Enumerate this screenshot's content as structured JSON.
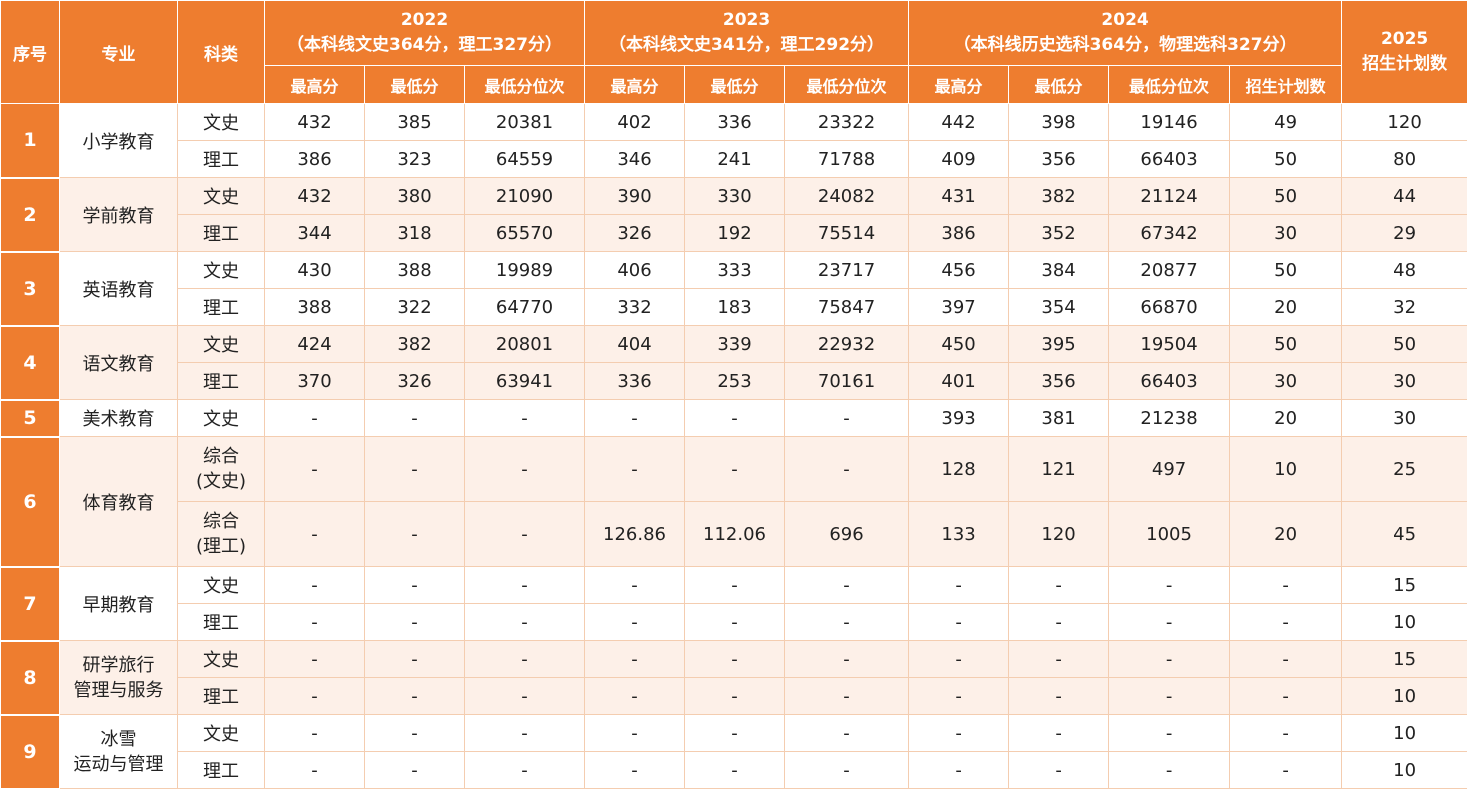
{
  "header": {
    "index": "序号",
    "major": "专业",
    "category": "科类",
    "years": [
      {
        "year": "2022",
        "note": "（本科线文史364分，理工327分）",
        "cols": [
          "最高分",
          "最低分",
          "最低分位次"
        ]
      },
      {
        "year": "2023",
        "note": "（本科线文史341分，理工292分）",
        "cols": [
          "最高分",
          "最低分",
          "最低分位次"
        ]
      },
      {
        "year": "2024",
        "note": "（本科线历史选科364分，物理选科327分）",
        "cols": [
          "最高分",
          "最低分",
          "最低分位次",
          "招生计划数"
        ]
      }
    ],
    "plan_year": "2025",
    "plan_label": "招生计划数"
  },
  "rows": [
    {
      "idx": "1",
      "major": "小学教育",
      "subs": [
        {
          "cat": "文史",
          "v": [
            "432",
            "385",
            "20381",
            "402",
            "336",
            "23322",
            "442",
            "398",
            "19146",
            "49",
            "120"
          ]
        },
        {
          "cat": "理工",
          "v": [
            "386",
            "323",
            "64559",
            "346",
            "241",
            "71788",
            "409",
            "356",
            "66403",
            "50",
            "80"
          ]
        }
      ]
    },
    {
      "idx": "2",
      "major": "学前教育",
      "subs": [
        {
          "cat": "文史",
          "v": [
            "432",
            "380",
            "21090",
            "390",
            "330",
            "24082",
            "431",
            "382",
            "21124",
            "50",
            "44"
          ]
        },
        {
          "cat": "理工",
          "v": [
            "344",
            "318",
            "65570",
            "326",
            "192",
            "75514",
            "386",
            "352",
            "67342",
            "30",
            "29"
          ]
        }
      ]
    },
    {
      "idx": "3",
      "major": "英语教育",
      "subs": [
        {
          "cat": "文史",
          "v": [
            "430",
            "388",
            "19989",
            "406",
            "333",
            "23717",
            "456",
            "384",
            "20877",
            "50",
            "48"
          ]
        },
        {
          "cat": "理工",
          "v": [
            "388",
            "322",
            "64770",
            "332",
            "183",
            "75847",
            "397",
            "354",
            "66870",
            "20",
            "32"
          ]
        }
      ]
    },
    {
      "idx": "4",
      "major": "语文教育",
      "subs": [
        {
          "cat": "文史",
          "v": [
            "424",
            "382",
            "20801",
            "404",
            "339",
            "22932",
            "450",
            "395",
            "19504",
            "50",
            "50"
          ]
        },
        {
          "cat": "理工",
          "v": [
            "370",
            "326",
            "63941",
            "336",
            "253",
            "70161",
            "401",
            "356",
            "66403",
            "30",
            "30"
          ]
        }
      ]
    },
    {
      "idx": "5",
      "major": "美术教育",
      "subs": [
        {
          "cat": "文史",
          "v": [
            "-",
            "-",
            "-",
            "-",
            "-",
            "-",
            "393",
            "381",
            "21238",
            "20",
            "30"
          ]
        }
      ]
    },
    {
      "idx": "6",
      "major": "体育教育",
      "subs": [
        {
          "cat": "综合\n(文史)",
          "v": [
            "-",
            "-",
            "-",
            "-",
            "-",
            "-",
            "128",
            "121",
            "497",
            "10",
            "25"
          ]
        },
        {
          "cat": "综合\n(理工)",
          "v": [
            "-",
            "-",
            "-",
            "126.86",
            "112.06",
            "696",
            "133",
            "120",
            "1005",
            "20",
            "45"
          ]
        }
      ]
    },
    {
      "idx": "7",
      "major": "早期教育",
      "subs": [
        {
          "cat": "文史",
          "v": [
            "-",
            "-",
            "-",
            "-",
            "-",
            "-",
            "-",
            "-",
            "-",
            "-",
            "15"
          ]
        },
        {
          "cat": "理工",
          "v": [
            "-",
            "-",
            "-",
            "-",
            "-",
            "-",
            "-",
            "-",
            "-",
            "-",
            "10"
          ]
        }
      ]
    },
    {
      "idx": "8",
      "major": "研学旅行\n管理与服务",
      "subs": [
        {
          "cat": "文史",
          "v": [
            "-",
            "-",
            "-",
            "-",
            "-",
            "-",
            "-",
            "-",
            "-",
            "-",
            "15"
          ]
        },
        {
          "cat": "理工",
          "v": [
            "-",
            "-",
            "-",
            "-",
            "-",
            "-",
            "-",
            "-",
            "-",
            "-",
            "10"
          ]
        }
      ]
    },
    {
      "idx": "9",
      "major": "冰雪\n运动与管理",
      "subs": [
        {
          "cat": "文史",
          "v": [
            "-",
            "-",
            "-",
            "-",
            "-",
            "-",
            "-",
            "-",
            "-",
            "-",
            "10"
          ]
        },
        {
          "cat": "理工",
          "v": [
            "-",
            "-",
            "-",
            "-",
            "-",
            "-",
            "-",
            "-",
            "-",
            "-",
            "10"
          ]
        }
      ]
    }
  ],
  "colors": {
    "header_bg": "#ee7d2f",
    "stripe": "#fdf0e8",
    "border": "#f4cdb0"
  }
}
